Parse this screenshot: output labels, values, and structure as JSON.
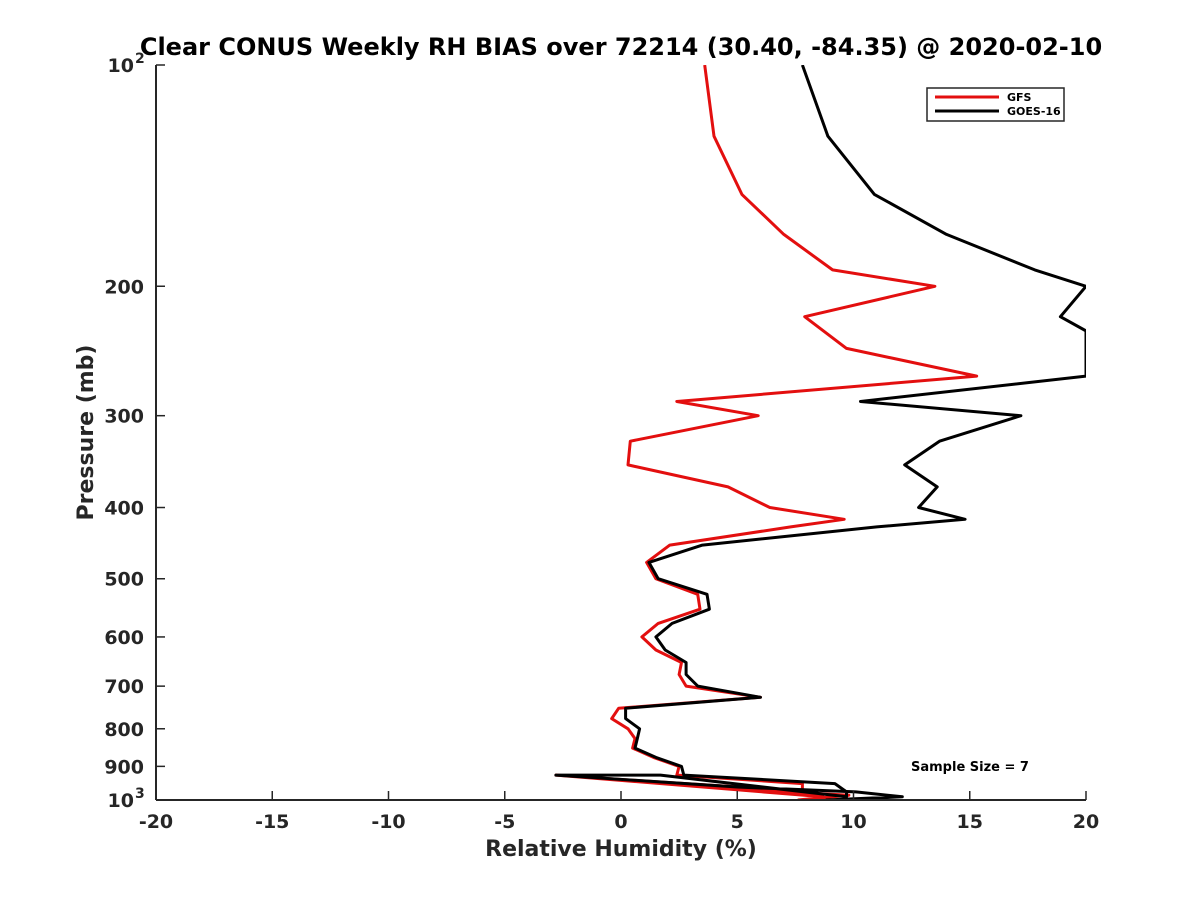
{
  "chart_data": {
    "type": "line",
    "title": "Clear CONUS Weekly RH BIAS over 72214 (30.40, -84.35) @ 2020-02-10",
    "xlabel": "Relative Humidity (%)",
    "ylabel": "Pressure (mb)",
    "xlim": [
      -20,
      20
    ],
    "ylim": [
      100,
      1000
    ],
    "yscale": "log",
    "yreversed": true,
    "grid": false,
    "legend_position": "top-right",
    "x_ticks": [
      "-20",
      "-15",
      "-10",
      "-5",
      "0",
      "5",
      "10",
      "15",
      "20"
    ],
    "y_ticks": [
      {
        "value": 100,
        "base": "10",
        "exp": "2"
      },
      {
        "value": 200,
        "label": "200"
      },
      {
        "value": 300,
        "label": "300"
      },
      {
        "value": 400,
        "label": "400"
      },
      {
        "value": 500,
        "label": "500"
      },
      {
        "value": 600,
        "label": "600"
      },
      {
        "value": 700,
        "label": "700"
      },
      {
        "value": 800,
        "label": "800"
      },
      {
        "value": 900,
        "label": "900"
      },
      {
        "value": 1000,
        "base": "10",
        "exp": "3"
      }
    ],
    "series": [
      {
        "name": "GFS",
        "color": "#e30f0f",
        "points": [
          [
            3.6,
            100
          ],
          [
            4.0,
            125
          ],
          [
            5.2,
            150
          ],
          [
            7.0,
            170
          ],
          [
            9.1,
            190
          ],
          [
            13.5,
            200
          ],
          [
            7.9,
            220
          ],
          [
            9.7,
            243
          ],
          [
            15.3,
            265
          ],
          [
            2.4,
            287
          ],
          [
            5.9,
            300
          ],
          [
            0.4,
            325
          ],
          [
            0.3,
            350
          ],
          [
            4.6,
            375
          ],
          [
            6.4,
            400
          ],
          [
            9.6,
            415
          ],
          [
            7.3,
            425
          ],
          [
            2.1,
            450
          ],
          [
            1.1,
            475
          ],
          [
            1.5,
            500
          ],
          [
            3.3,
            525
          ],
          [
            3.4,
            550
          ],
          [
            1.6,
            575
          ],
          [
            0.9,
            600
          ],
          [
            1.5,
            625
          ],
          [
            2.6,
            650
          ],
          [
            2.5,
            675
          ],
          [
            2.8,
            700
          ],
          [
            6.0,
            725
          ],
          [
            -0.1,
            750
          ],
          [
            -0.4,
            775
          ],
          [
            0.3,
            800
          ],
          [
            0.6,
            825
          ],
          [
            0.5,
            850
          ],
          [
            1.4,
            875
          ],
          [
            2.5,
            900
          ],
          [
            2.4,
            925
          ],
          [
            7.8,
            950
          ],
          [
            7.8,
            975
          ],
          [
            8.7,
            990
          ],
          [
            -2.8,
            925
          ],
          [
            0.5,
            940
          ],
          [
            5.1,
            960
          ],
          [
            7.2,
            975
          ],
          [
            9.8,
            985
          ],
          [
            7.6,
            1000
          ]
        ]
      },
      {
        "name": "GOES-16",
        "color": "#000000",
        "points": [
          [
            7.8,
            100
          ],
          [
            8.9,
            125
          ],
          [
            10.9,
            150
          ],
          [
            14.0,
            170
          ],
          [
            17.8,
            190
          ],
          [
            20.0,
            200
          ],
          [
            18.9,
            220
          ],
          [
            20.0,
            230
          ],
          [
            20.0,
            265
          ],
          [
            10.3,
            287
          ],
          [
            17.2,
            300
          ],
          [
            13.7,
            325
          ],
          [
            12.2,
            350
          ],
          [
            13.6,
            375
          ],
          [
            12.8,
            400
          ],
          [
            14.8,
            415
          ],
          [
            11.0,
            425
          ],
          [
            3.5,
            450
          ],
          [
            1.2,
            475
          ],
          [
            1.6,
            500
          ],
          [
            3.7,
            525
          ],
          [
            3.8,
            550
          ],
          [
            2.2,
            575
          ],
          [
            1.5,
            600
          ],
          [
            1.9,
            625
          ],
          [
            2.8,
            650
          ],
          [
            2.8,
            675
          ],
          [
            3.3,
            700
          ],
          [
            6.0,
            725
          ],
          [
            0.2,
            750
          ],
          [
            0.2,
            775
          ],
          [
            0.8,
            800
          ],
          [
            0.7,
            825
          ],
          [
            0.6,
            850
          ],
          [
            1.5,
            875
          ],
          [
            2.6,
            900
          ],
          [
            2.7,
            925
          ],
          [
            9.2,
            950
          ],
          [
            9.7,
            975
          ],
          [
            9.7,
            990
          ],
          [
            1.7,
            925
          ],
          [
            -2.8,
            925
          ],
          [
            5.0,
            960
          ],
          [
            10.1,
            975
          ],
          [
            12.1,
            990
          ],
          [
            8.8,
            1000
          ]
        ]
      }
    ],
    "annotation": "Sample Size = 7"
  }
}
